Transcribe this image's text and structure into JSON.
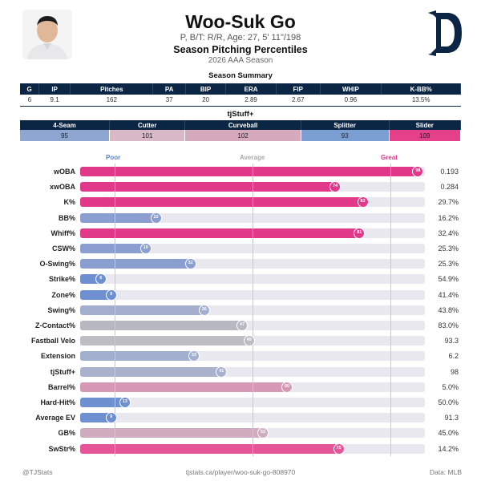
{
  "header": {
    "title": "Woo-Suk Go",
    "subtitle": "P, B/T: R/R, Age: 27, 5' 11\"/198",
    "section_title": "Season Pitching Percentiles",
    "season": "2026 AAA Season"
  },
  "summary": {
    "title": "Season Summary",
    "columns": [
      "G",
      "IP",
      "Pitches",
      "PA",
      "BIP",
      "ERA",
      "FIP",
      "WHIP",
      "K-BB%"
    ],
    "values": [
      "6",
      "9.1",
      "162",
      "37",
      "20",
      "2.89",
      "2.67",
      "0.96",
      "13.5%"
    ]
  },
  "tjstuff": {
    "title": "tjStuff+",
    "columns": [
      "4-Seam",
      "Cutter",
      "Curveball",
      "Splitter",
      "Slider"
    ],
    "values": [
      "95",
      "101",
      "102",
      "93",
      "109"
    ],
    "colors": [
      "#8ea6d0",
      "#d9b8c8",
      "#d6a9bd",
      "#7b9fd2",
      "#e5408a"
    ]
  },
  "chart_markers": {
    "poor": "Poor",
    "average": "Average",
    "great": "Great"
  },
  "chart_data": {
    "type": "bar",
    "orientation": "horizontal",
    "xlim": [
      0,
      100
    ],
    "categories": [
      "wOBA",
      "xwOBA",
      "K%",
      "BB%",
      "Whiff%",
      "CSW%",
      "O-Swing%",
      "Strike%",
      "Zone%",
      "Swing%",
      "Z-Contact%",
      "Fastball Velo",
      "Extension",
      "tjStuff+",
      "Barrel%",
      "Hard-Hit%",
      "Average EV",
      "GB%",
      "SwStr%"
    ],
    "percentiles": [
      98,
      74,
      82,
      22,
      81,
      19,
      32,
      6,
      9,
      36,
      47,
      49,
      33,
      41,
      60,
      13,
      9,
      53,
      75
    ],
    "stat_values": [
      "0.193",
      "0.284",
      "29.7%",
      "16.2%",
      "32.4%",
      "25.3%",
      "25.3%",
      "54.9%",
      "41.4%",
      "43.8%",
      "83.0%",
      "93.3",
      "6.2",
      "98",
      "5.0%",
      "50.0%",
      "91.3",
      "45.0%",
      "14.2%"
    ],
    "colors": [
      "#e2388a",
      "#e2388a",
      "#e2388a",
      "#8a9ed0",
      "#e2388a",
      "#8a9ed0",
      "#8a9ed0",
      "#6e8fd0",
      "#6e8fd0",
      "#a4afd0",
      "#b7b8c2",
      "#bdbdc3",
      "#a3afcf",
      "#a9b1cd",
      "#d699b5",
      "#6e8fd0",
      "#6e8fd0",
      "#d0adbe",
      "#e55597"
    ]
  },
  "footer": {
    "left": "@TJStats",
    "center": "tjstats.ca/player/woo-suk-go-808970",
    "right": "Data: MLB"
  }
}
